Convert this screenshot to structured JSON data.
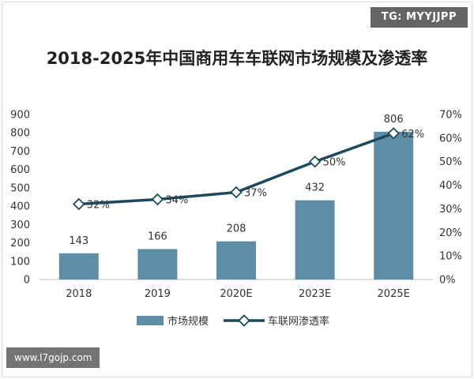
{
  "watermarks": {
    "top_right": "TG: MYYJJPP",
    "bottom_left": "www.l7gojp.com"
  },
  "colors": {
    "bar": "#5e8da6",
    "line": "#1c4a5c",
    "axis": "#bfbfbf",
    "text": "#333333"
  },
  "chart_data": {
    "type": "bar",
    "title": "2018-2025年中国商用车车联网市场规模及渗透率",
    "categories": [
      "2018",
      "2019",
      "2020E",
      "2023E",
      "2025E"
    ],
    "series": [
      {
        "name": "市场规模",
        "type": "bar",
        "axis": "left",
        "values": [
          143,
          166,
          208,
          432,
          806
        ],
        "labels": [
          "143",
          "166",
          "208",
          "432",
          "806"
        ]
      },
      {
        "name": "车联网渗透率",
        "type": "line",
        "axis": "right",
        "marker": "diamond",
        "values": [
          32,
          34,
          37,
          50,
          62
        ],
        "labels": [
          "32%",
          "34%",
          "37%",
          "50%",
          "62%"
        ]
      }
    ],
    "y_left": {
      "ylim": [
        0,
        900
      ],
      "ticks": [
        "900",
        "800",
        "700",
        "600",
        "500",
        "400",
        "300",
        "200",
        "100",
        "0"
      ]
    },
    "y_right": {
      "ylim": [
        0,
        70
      ],
      "ticks": [
        "70%",
        "60%",
        "50%",
        "40%",
        "30%",
        "20%",
        "10%",
        "0%"
      ]
    },
    "grid": false,
    "legend_position": "bottom"
  }
}
